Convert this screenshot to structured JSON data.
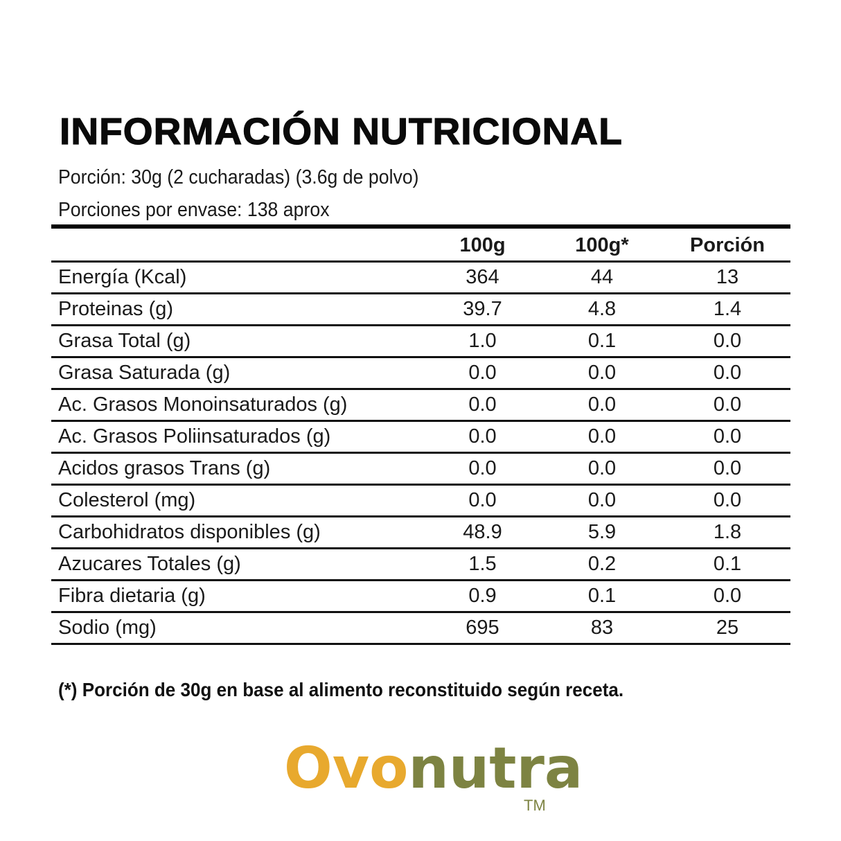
{
  "title": "INFORMACIÓN NUTRICIONAL",
  "serving": "Porción: 30g (2 cucharadas) (3.6g de polvo)",
  "servings_per_container": "Porciones por envase: 138 aprox",
  "table": {
    "headers": [
      "",
      "100g",
      "100g*",
      "Porción"
    ],
    "rows": [
      {
        "label": "Energía (Kcal)",
        "v100": "364",
        "v100s": "44",
        "portion": "13"
      },
      {
        "label": "Proteinas (g)",
        "v100": "39.7",
        "v100s": "4.8",
        "portion": "1.4"
      },
      {
        "label": "Grasa Total (g)",
        "v100": "1.0",
        "v100s": "0.1",
        "portion": "0.0"
      },
      {
        "label": "Grasa Saturada (g)",
        "v100": "0.0",
        "v100s": "0.0",
        "portion": "0.0"
      },
      {
        "label": "Ac. Grasos Monoinsaturados (g)",
        "v100": "0.0",
        "v100s": "0.0",
        "portion": "0.0"
      },
      {
        "label": "Ac. Grasos Poliinsaturados (g)",
        "v100": "0.0",
        "v100s": "0.0",
        "portion": "0.0"
      },
      {
        "label": "Acidos grasos Trans (g)",
        "v100": "0.0",
        "v100s": "0.0",
        "portion": "0.0"
      },
      {
        "label": "Colesterol (mg)",
        "v100": "0.0",
        "v100s": "0.0",
        "portion": "0.0"
      },
      {
        "label": "Carbohidratos disponibles (g)",
        "v100": "48.9",
        "v100s": "5.9",
        "portion": "1.8"
      },
      {
        "label": "Azucares Totales (g)",
        "v100": "1.5",
        "v100s": "0.2",
        "portion": "0.1"
      },
      {
        "label": "Fibra dietaria (g)",
        "v100": "0.9",
        "v100s": "0.1",
        "portion": "0.0"
      },
      {
        "label": "Sodio (mg)",
        "v100": "695",
        "v100s": "83",
        "portion": "25"
      }
    ]
  },
  "footnote": "(*) Porción de 30g en base al alimento reconstituido según receta.",
  "brand": {
    "part1": "Ovo",
    "part2": "nutra",
    "trademark": "TM",
    "color_primary": "#e8a92e",
    "color_secondary": "#7d8342"
  }
}
